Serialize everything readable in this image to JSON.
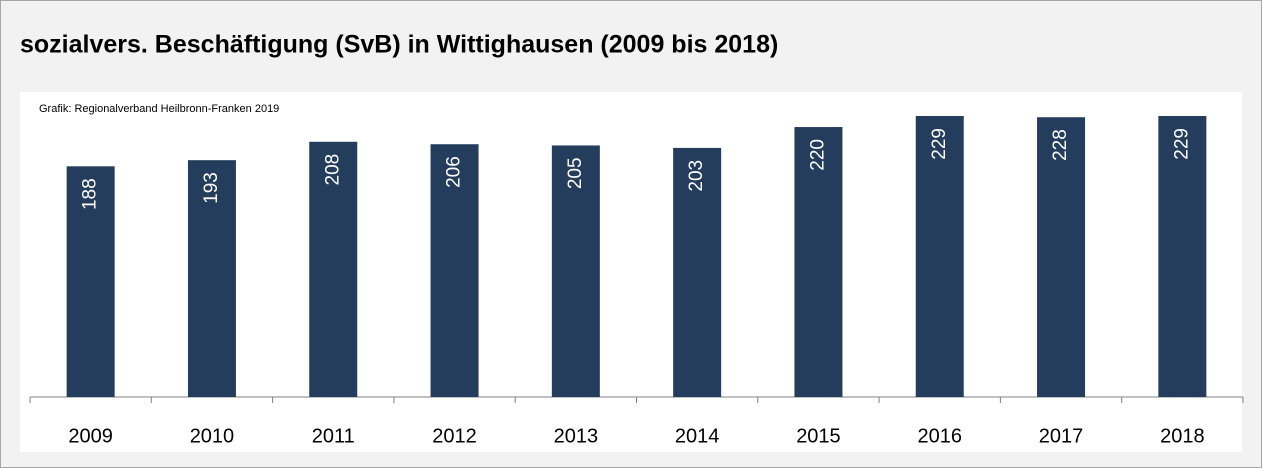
{
  "chart_data": {
    "type": "bar",
    "title": "sozialvers. Beschäftigung (SvB) in Wittighausen (2009 bis 2018)",
    "subtitle": "Grafik: Regionalverband Heilbronn-Franken 2019",
    "categories": [
      "2009",
      "2010",
      "2011",
      "2012",
      "2013",
      "2014",
      "2015",
      "2016",
      "2017",
      "2018"
    ],
    "values": [
      188,
      193,
      208,
      206,
      205,
      203,
      220,
      229,
      228,
      229
    ],
    "color": "#253d5c"
  }
}
